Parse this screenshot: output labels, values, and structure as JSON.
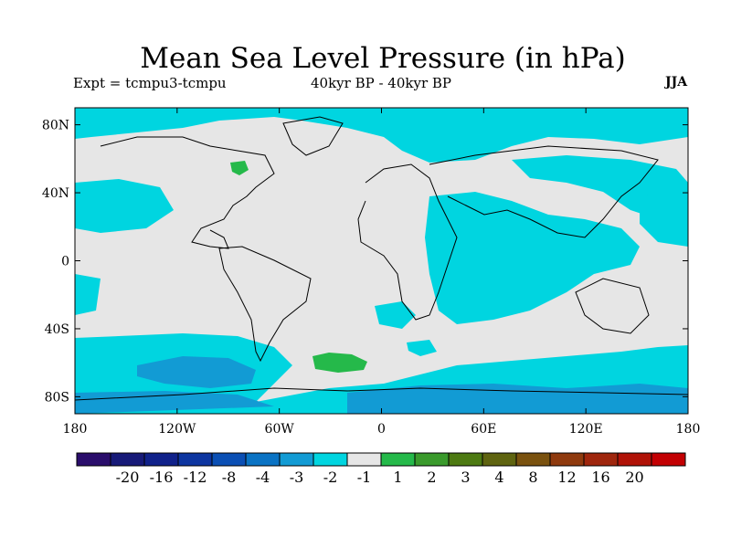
{
  "title": "Mean Sea Level Pressure (in hPa)",
  "subtitle_left": "Expt = tcmpu3-tcmpu",
  "subtitle_center": "40kyr BP - 40kyr BP",
  "subtitle_right": "JJA",
  "axes": {
    "x_ticks": [
      {
        "value": -180,
        "label": "180"
      },
      {
        "value": -120,
        "label": "120W"
      },
      {
        "value": -60,
        "label": "60W"
      },
      {
        "value": 0,
        "label": "0"
      },
      {
        "value": 60,
        "label": "60E"
      },
      {
        "value": 120,
        "label": "120E"
      },
      {
        "value": 180,
        "label": "180"
      }
    ],
    "y_ticks": [
      {
        "value": 80,
        "label": "80N"
      },
      {
        "value": 40,
        "label": "40N"
      },
      {
        "value": 0,
        "label": "0"
      },
      {
        "value": -40,
        "label": "40S"
      },
      {
        "value": -80,
        "label": "80S"
      }
    ],
    "lon_range": [
      -180,
      180
    ],
    "lat_range": [
      -90,
      90
    ]
  },
  "colorbar": {
    "colors": [
      "#2a0d6b",
      "#171a78",
      "#10218a",
      "#0d35a0",
      "#0b4fb4",
      "#0a73c4",
      "#129bd4",
      "#00d5e0",
      "#e6e6e6",
      "#25b94a",
      "#3a9a2c",
      "#4d7a12",
      "#5f6410",
      "#7a520f",
      "#8f3a0e",
      "#9f260d",
      "#b01207",
      "#c30003"
    ],
    "labels": [
      "-20",
      "-16",
      "-12",
      "-8",
      "-4",
      "-3",
      "-2",
      "-1",
      "1",
      "2",
      "3",
      "4",
      "8",
      "12",
      "16",
      "20"
    ]
  },
  "fill_legend": {
    "neutral": "#e6e6e6",
    "neg1": "#00d5e0",
    "neg2": "#129bd4",
    "pos1": "#25b94a"
  }
}
